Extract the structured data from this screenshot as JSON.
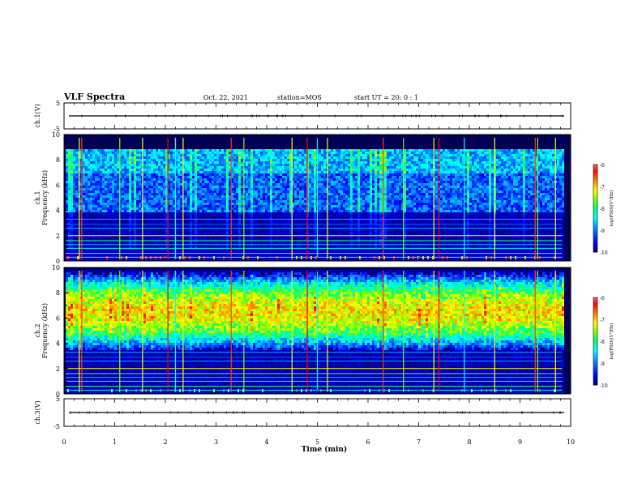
{
  "header": {
    "title": "VLF Spectra",
    "date": "Oct. 22, 2021",
    "station": "station=MOS",
    "start": "start UT =  20: 0  : 1"
  },
  "colors": {
    "colormap": [
      "#000080",
      "#0000ff",
      "#00a0ff",
      "#00ffff",
      "#00ff80",
      "#80ff00",
      "#ffff00",
      "#ff8000",
      "#ff0000",
      "#ff6060",
      "#ffffff"
    ],
    "trace": "#000000",
    "frame": "#000000"
  },
  "chart_data": [
    {
      "type": "line",
      "name": "ch1-waveform",
      "ylabel": "ch.1(V)",
      "ylim": [
        -5,
        5
      ],
      "yticks": [
        "5",
        "-5"
      ],
      "xlim": [
        0,
        10
      ],
      "trace_level": 0
    },
    {
      "type": "heatmap",
      "name": "ch1-spectrogram",
      "ylabel": "ch.1\nFrequency (kHz)",
      "ylim": [
        0,
        10
      ],
      "yticks": [
        "0",
        "2",
        "4",
        "6",
        "8",
        "10"
      ],
      "xlim": [
        0,
        10
      ],
      "colorbar": {
        "label": "log(PSD)(V²/Hz)",
        "range": [
          -10,
          -6
        ],
        "ticks": [
          "-6",
          "-7",
          "-8",
          "-9",
          "-10"
        ]
      },
      "noise_lines_khz": [
        0.3,
        0.6,
        1.0,
        1.3,
        1.6,
        2.0,
        2.6,
        2.9,
        3.3
      ],
      "band_khz": [
        4.0,
        9.0
      ],
      "band_level": -8.6,
      "sferic_times_min": [
        0.3,
        0.35,
        1.1,
        1.55,
        2.05,
        2.2,
        2.35,
        3.3,
        3.55,
        4.5,
        4.8,
        5.0,
        5.2,
        6.3,
        6.7,
        7.3,
        7.4,
        7.9,
        8.5,
        9.3,
        9.35,
        9.7
      ]
    },
    {
      "type": "heatmap",
      "name": "ch2-spectrogram",
      "ylabel": "ch.2\nFrequency (kHz)",
      "ylim": [
        0,
        10
      ],
      "yticks": [
        "0",
        "2",
        "4",
        "6",
        "8",
        "10"
      ],
      "xlim": [
        0,
        10
      ],
      "colorbar": {
        "label": "log(PSD)(V²/Hz)",
        "range": [
          -10,
          -6
        ],
        "ticks": [
          "-6",
          "-7",
          "-8",
          "-9",
          "-10"
        ]
      },
      "noise_lines_khz": [
        0.3,
        0.6,
        1.0,
        1.3,
        1.6,
        2.0,
        2.6,
        2.9,
        3.3
      ],
      "band_khz": [
        3.5,
        9.8
      ],
      "band_center_khz": 6.6,
      "band_peak_level": -6.6,
      "sferic_times_min": [
        0.3,
        0.35,
        1.1,
        1.55,
        2.05,
        2.2,
        2.35,
        3.3,
        3.55,
        4.5,
        4.8,
        5.0,
        5.2,
        6.3,
        6.7,
        7.3,
        7.4,
        7.9,
        8.5,
        9.3,
        9.35,
        9.7
      ]
    },
    {
      "type": "line",
      "name": "ch3-waveform",
      "ylabel": "ch.3(V)",
      "ylim": [
        -5,
        5
      ],
      "yticks": [
        "5",
        "-5"
      ],
      "xlim": [
        0,
        10
      ],
      "trace_level": 0
    }
  ],
  "xaxis": {
    "label": "Time (min)",
    "ticks": [
      "0",
      "1",
      "2",
      "3",
      "4",
      "5",
      "6",
      "7",
      "8",
      "9",
      "10"
    ]
  }
}
